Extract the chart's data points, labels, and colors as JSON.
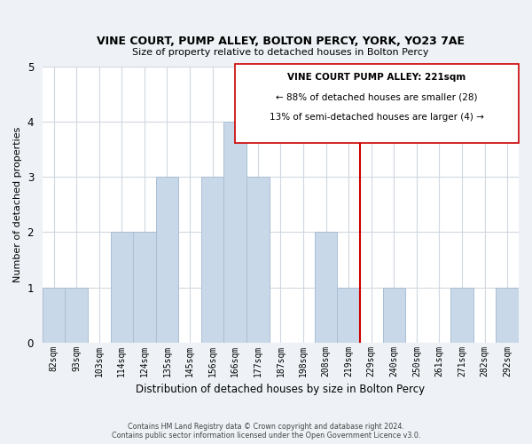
{
  "title": "VINE COURT, PUMP ALLEY, BOLTON PERCY, YORK, YO23 7AE",
  "subtitle": "Size of property relative to detached houses in Bolton Percy",
  "xlabel": "Distribution of detached houses by size in Bolton Percy",
  "ylabel": "Number of detached properties",
  "bar_labels": [
    "82sqm",
    "93sqm",
    "103sqm",
    "114sqm",
    "124sqm",
    "135sqm",
    "145sqm",
    "156sqm",
    "166sqm",
    "177sqm",
    "187sqm",
    "198sqm",
    "208sqm",
    "219sqm",
    "229sqm",
    "240sqm",
    "250sqm",
    "261sqm",
    "271sqm",
    "282sqm",
    "292sqm"
  ],
  "bar_values": [
    1,
    1,
    0,
    2,
    2,
    3,
    0,
    3,
    4,
    3,
    0,
    0,
    2,
    1,
    0,
    1,
    0,
    0,
    1,
    0,
    1
  ],
  "bar_color": "#c8d8e8",
  "bar_edgecolor": "#aabfd4",
  "vline_x_index": 13,
  "vline_color": "#cc0000",
  "ylim": [
    0,
    5
  ],
  "yticks": [
    0,
    1,
    2,
    3,
    4,
    5
  ],
  "annotation_title": "VINE COURT PUMP ALLEY: 221sqm",
  "annotation_line1": "← 88% of detached houses are smaller (28)",
  "annotation_line2": "13% of semi-detached houses are larger (4) →",
  "annotation_box_color": "#ffffff",
  "annotation_box_edgecolor": "#cc0000",
  "footer_line1": "Contains HM Land Registry data © Crown copyright and database right 2024.",
  "footer_line2": "Contains public sector information licensed under the Open Government Licence v3.0.",
  "background_color": "#eef2f6",
  "plot_background_color": "#ffffff",
  "grid_color": "#d0d8e0"
}
